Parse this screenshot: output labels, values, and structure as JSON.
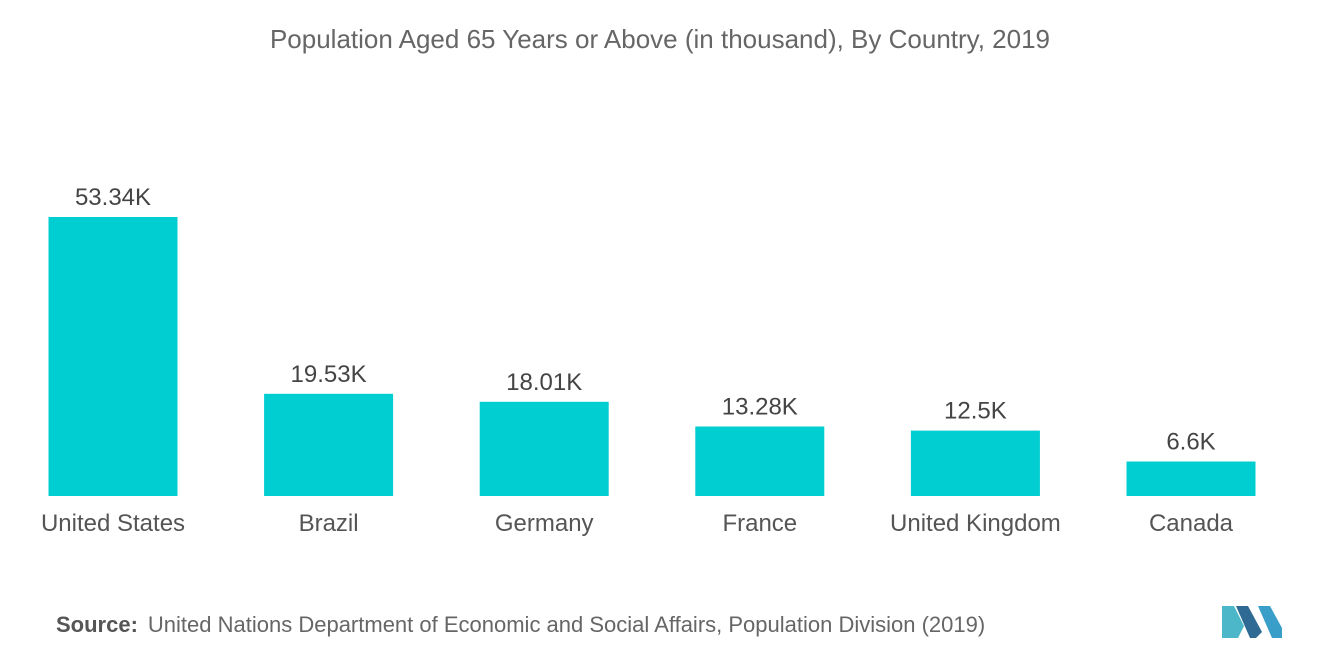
{
  "chart_data": {
    "type": "bar",
    "title": "Population Aged 65 Years or Above (in thousand),  By Country, 2019",
    "categories": [
      "United States",
      "Brazil",
      "Germany",
      "France",
      "United Kingdom",
      "Canada"
    ],
    "values": [
      53.34,
      19.53,
      18.01,
      13.28,
      12.5,
      6.6
    ],
    "value_labels": [
      "53.34K",
      "19.53K",
      "18.01K",
      "13.28K",
      "12.5K",
      "6.6K"
    ],
    "xlabel": "",
    "ylabel": "",
    "ylim": [
      0,
      53.34
    ],
    "grid": false,
    "bar_color": "#00CED1"
  },
  "source": {
    "label": "Source:",
    "text": "United Nations Department of Economic and Social Affairs, Population Division (2019)"
  },
  "logo": {
    "icon": "mordor-intelligence-logo-icon",
    "colors": [
      "#3A9FC8",
      "#2E6A93",
      "#4CB7C9"
    ]
  }
}
